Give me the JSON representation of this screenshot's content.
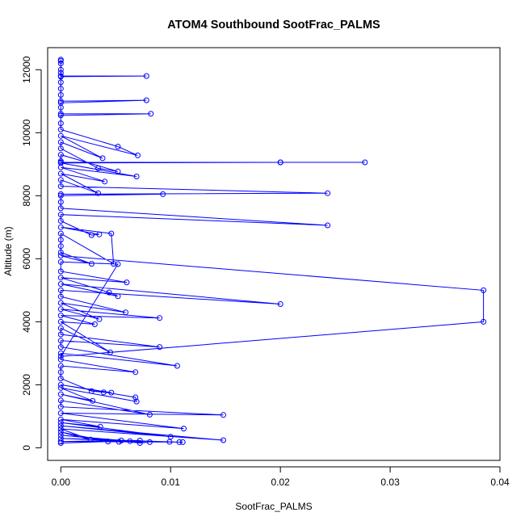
{
  "chart_data": {
    "type": "line",
    "title": "ATOM4 Southbound SootFrac_PALMS",
    "xlabel": "SootFrac_PALMS",
    "ylabel": "Altitude (m)",
    "xlim": [
      -0.0012,
      0.04
    ],
    "ylim": [
      -400,
      12700
    ],
    "xticks": [
      0.0,
      0.01,
      0.02,
      0.03,
      0.04
    ],
    "xtick_labels": [
      "0.00",
      "0.01",
      "0.02",
      "0.03",
      "0.04"
    ],
    "yticks": [
      0,
      2000,
      4000,
      6000,
      8000,
      10000,
      12000
    ],
    "ytick_labels": [
      "0",
      "2000",
      "4000",
      "6000",
      "8000",
      "10000",
      "12000"
    ],
    "grid": false,
    "legend": "none",
    "color": "#0000ff",
    "marker": "open-circle",
    "series": [
      {
        "points": [
          [
            0,
            12320
          ],
          [
            0,
            12280
          ],
          [
            0,
            12200
          ],
          [
            0,
            12000
          ],
          [
            0,
            11900
          ],
          [
            0,
            11800
          ],
          [
            0.0078,
            11800
          ],
          [
            0,
            11780
          ],
          [
            0,
            11600
          ],
          [
            0,
            11400
          ],
          [
            0,
            11200
          ],
          [
            0,
            11000
          ],
          [
            0.0078,
            11030
          ],
          [
            0,
            10950
          ],
          [
            0,
            10800
          ],
          [
            0,
            10600
          ],
          [
            0.0082,
            10600
          ],
          [
            0,
            10550
          ],
          [
            0,
            10300
          ],
          [
            0,
            10100
          ],
          [
            0.0052,
            9560
          ],
          [
            0.007,
            9280
          ],
          [
            0,
            9900
          ],
          [
            0.0038,
            9190
          ],
          [
            0,
            9700
          ],
          [
            0,
            9500
          ],
          [
            0.0034,
            8870
          ],
          [
            0.0052,
            8770
          ],
          [
            0,
            9300
          ],
          [
            0,
            9100
          ],
          [
            0,
            9060
          ],
          [
            0.02,
            9060
          ],
          [
            0.0277,
            9060
          ],
          [
            0.02,
            9060
          ],
          [
            0,
            9040
          ],
          [
            0.0069,
            8610
          ],
          [
            0,
            8900
          ],
          [
            0.004,
            8450
          ],
          [
            0,
            8700
          ],
          [
            0.0034,
            8080
          ],
          [
            0,
            8500
          ],
          [
            0,
            8300
          ],
          [
            0.0243,
            8080
          ],
          [
            0,
            8050
          ],
          [
            0.0093,
            8050
          ],
          [
            0,
            8000
          ],
          [
            0,
            7800
          ],
          [
            0,
            7600
          ],
          [
            0.0243,
            7060
          ],
          [
            0,
            7400
          ],
          [
            0,
            7200
          ],
          [
            0.0028,
            6750
          ],
          [
            0.0035,
            6770
          ],
          [
            0,
            7000
          ],
          [
            0.0046,
            6800
          ],
          [
            0.0048,
            5840
          ],
          [
            0,
            6800
          ],
          [
            0,
            6600
          ],
          [
            0,
            6400
          ],
          [
            0,
            6200
          ],
          [
            0.0028,
            5840
          ],
          [
            0,
            6100
          ],
          [
            0.0385,
            5000
          ],
          [
            0.0385,
            4000
          ],
          [
            0,
            2900
          ],
          [
            0.0052,
            5830
          ],
          [
            0,
            5900
          ],
          [
            0,
            5600
          ],
          [
            0.006,
            5250
          ],
          [
            0,
            5400
          ],
          [
            0.0044,
            4930
          ],
          [
            0.0052,
            4810
          ],
          [
            0,
            5200
          ],
          [
            0.02,
            4560
          ],
          [
            0,
            5000
          ],
          [
            0,
            4800
          ],
          [
            0.0059,
            4300
          ],
          [
            0,
            4600
          ],
          [
            0.0035,
            4080
          ],
          [
            0,
            4400
          ],
          [
            0.009,
            4120
          ],
          [
            0,
            4200
          ],
          [
            0.0031,
            3920
          ],
          [
            0,
            4000
          ],
          [
            0.0045,
            3030
          ],
          [
            0,
            3800
          ],
          [
            0,
            3600
          ],
          [
            0.009,
            3200
          ],
          [
            0,
            3400
          ],
          [
            0,
            3200
          ],
          [
            0.0106,
            2600
          ],
          [
            0,
            3000
          ],
          [
            0,
            2800
          ],
          [
            0.0068,
            2400
          ],
          [
            0,
            2600
          ],
          [
            0,
            2400
          ],
          [
            0,
            2200
          ],
          [
            0.0028,
            1800
          ],
          [
            0.0039,
            1760
          ],
          [
            0.0046,
            1750
          ],
          [
            0,
            2000
          ],
          [
            0.0068,
            1600
          ],
          [
            0.0069,
            1470
          ],
          [
            0,
            1900
          ],
          [
            0.0029,
            1490
          ],
          [
            0,
            1700
          ],
          [
            0.0081,
            1050
          ],
          [
            0,
            1500
          ],
          [
            0,
            1300
          ],
          [
            0.0148,
            1040
          ],
          [
            0,
            1100
          ],
          [
            0.0112,
            610
          ],
          [
            0,
            900
          ],
          [
            0.0036,
            670
          ],
          [
            0,
            800
          ],
          [
            0.01,
            350
          ],
          [
            0,
            700
          ],
          [
            0.0148,
            240
          ],
          [
            0,
            600
          ],
          [
            0.0027,
            260
          ],
          [
            0,
            500
          ],
          [
            0.0043,
            200
          ],
          [
            0.0053,
            190
          ],
          [
            0.0063,
            210
          ],
          [
            0,
            400
          ],
          [
            0.0072,
            150
          ],
          [
            0.0081,
            180
          ],
          [
            0,
            300
          ],
          [
            0.0099,
            190
          ],
          [
            0.0108,
            180
          ],
          [
            0.0111,
            180
          ],
          [
            0,
            200
          ],
          [
            0.0055,
            230
          ],
          [
            0.0072,
            230
          ],
          [
            0,
            150
          ]
        ]
      }
    ]
  }
}
